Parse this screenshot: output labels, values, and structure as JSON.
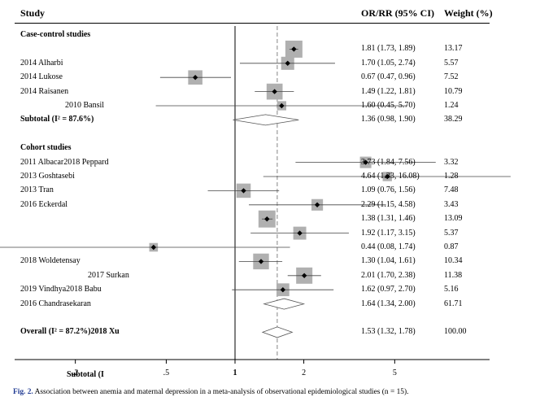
{
  "chart_data": {
    "type": "forest",
    "title": "",
    "headers": {
      "study": "Study",
      "estimate": "OR/RR (95% CI)",
      "weight": "Weight (%)"
    },
    "x_axis": {
      "scale": "log",
      "ticks": [
        ".2",
        ".5",
        "1",
        "2",
        "5"
      ],
      "tick_values": [
        0.2,
        0.5,
        1,
        2,
        5
      ],
      "reference_line": 1,
      "overall_line": 1.53
    },
    "rows": [
      {
        "kind": "group",
        "label": "Case-control studies"
      },
      {
        "kind": "study",
        "label": "",
        "est": 1.81,
        "lo": 1.73,
        "hi": 1.89,
        "ci_text": "1.81 (1.73, 1.89)",
        "weight": "13.17"
      },
      {
        "kind": "study",
        "label": "2014 Alharbi",
        "est": 1.7,
        "lo": 1.05,
        "hi": 2.74,
        "ci_text": "1.70 (1.05, 2.74)",
        "weight": "5.57"
      },
      {
        "kind": "study",
        "label": "2014 Lukose",
        "est": 0.67,
        "lo": 0.47,
        "hi": 0.96,
        "ci_text": "0.67 (0.47, 0.96)",
        "weight": "7.52"
      },
      {
        "kind": "study",
        "label": "2014 Raisanen",
        "est": 1.49,
        "lo": 1.22,
        "hi": 1.81,
        "ci_text": "1.49 (1.22, 1.81)",
        "weight": "10.79"
      },
      {
        "kind": "study",
        "label": "2010 Bansil",
        "est": 1.6,
        "lo": 0.45,
        "hi": 5.7,
        "ci_text": "1.60 (0.45, 5.70)",
        "weight": "1.24"
      },
      {
        "kind": "subtotal",
        "label": "Subtotal  (I² = 87.6%)",
        "est": 1.36,
        "lo": 0.98,
        "hi": 1.9,
        "ci_text": "1.36 (0.98, 1.90)",
        "weight": "38.29"
      },
      {
        "kind": "blank"
      },
      {
        "kind": "group",
        "label": "Cohort studies"
      },
      {
        "kind": "study",
        "label": "2011 Albacar2018 Peppard",
        "est": 3.73,
        "lo": 1.84,
        "hi": 7.56,
        "ci_text": "3.73 (1.84, 7.56)",
        "weight": "3.32"
      },
      {
        "kind": "study",
        "label": "2013 Goshtasebi",
        "est": 4.64,
        "lo": 1.33,
        "hi": 16.08,
        "ci_text": "4.64 (1.33, 16.08)",
        "weight": "1.28"
      },
      {
        "kind": "study",
        "label": "2013 Tran",
        "est": 1.09,
        "lo": 0.76,
        "hi": 1.56,
        "ci_text": "1.09 (0.76, 1.56)",
        "weight": "7.48"
      },
      {
        "kind": "study",
        "label": "2016 Eckerdal",
        "est": 2.29,
        "lo": 1.15,
        "hi": 4.58,
        "ci_text": "2.29 (1.15, 4.58)",
        "weight": "3.43"
      },
      {
        "kind": "study",
        "label": "",
        "est": 1.38,
        "lo": 1.31,
        "hi": 1.46,
        "ci_text": "1.38 (1.31, 1.46)",
        "weight": "13.09"
      },
      {
        "kind": "study",
        "label": "",
        "est": 1.92,
        "lo": 1.17,
        "hi": 3.15,
        "ci_text": "1.92 (1.17, 3.15)",
        "weight": "5.37"
      },
      {
        "kind": "study",
        "label": "",
        "est": 0.44,
        "lo": 0.08,
        "hi": 1.74,
        "ci_text": "0.44 (0.08, 1.74)",
        "weight": "0.87"
      },
      {
        "kind": "study",
        "label": "2018 Woldetensay",
        "est": 1.3,
        "lo": 1.04,
        "hi": 1.61,
        "ci_text": "1.30 (1.04, 1.61)",
        "weight": "10.34"
      },
      {
        "kind": "study",
        "label": "2017 Surkan",
        "est": 2.01,
        "lo": 1.7,
        "hi": 2.38,
        "ci_text": "2.01 (1.70, 2.38)",
        "weight": "11.38"
      },
      {
        "kind": "study",
        "label": "2019 Vindhya2018 Babu",
        "est": 1.62,
        "lo": 0.97,
        "hi": 2.7,
        "ci_text": "1.62 (0.97, 2.70)",
        "weight": "5.16"
      },
      {
        "kind": "subtotal",
        "label": "2016 Chandrasekaran",
        "est": 1.64,
        "lo": 1.34,
        "hi": 2.0,
        "ci_text": "1.64 (1.34, 2.00)",
        "weight": "61.71"
      },
      {
        "kind": "blank"
      },
      {
        "kind": "overall",
        "label": "Overall  (I² = 87.2%)2018 Xu",
        "est": 1.53,
        "lo": 1.32,
        "hi": 1.78,
        "ci_text": "1.53 (1.32, 1.78)",
        "weight": "100.00"
      },
      {
        "kind": "blank"
      },
      {
        "kind": "blank"
      },
      {
        "kind": "label",
        "label": "Subtotal  (I"
      }
    ]
  },
  "caption": {
    "lead": "Fig. 2.",
    "text": " Association between anemia and maternal depression in a meta-analysis of observational epidemiological studies (n = 15)."
  },
  "colors": {
    "box": "#b0b0b0",
    "marker": "#000000",
    "ci_line": "#444444",
    "null_line": "#000000",
    "overall_line": "#9a9a9a",
    "axis": "#000000"
  }
}
